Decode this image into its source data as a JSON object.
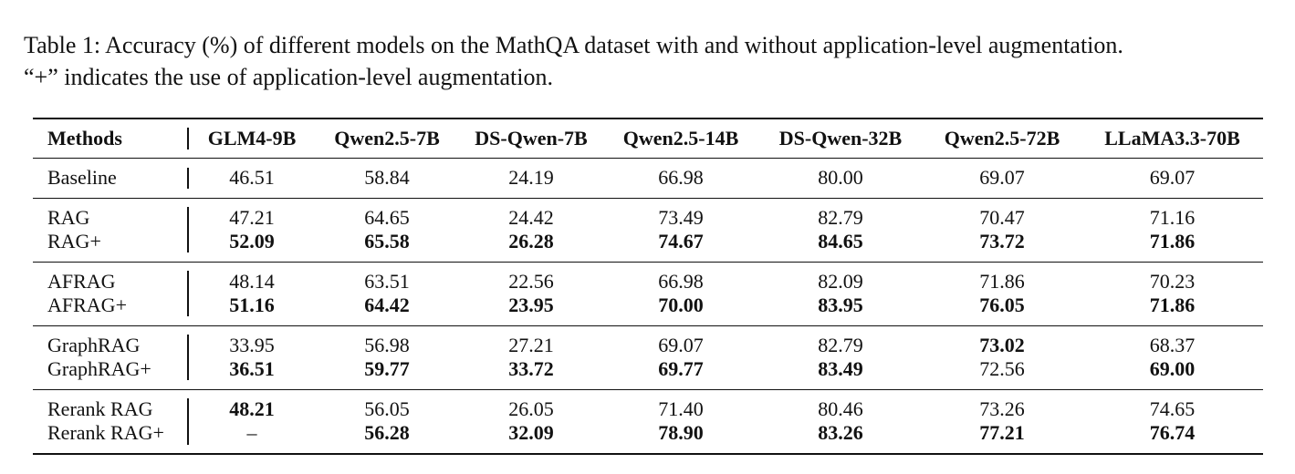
{
  "caption": {
    "line1": "Table 1: Accuracy (%) of different models on the MathQA dataset with and without application-level augmentation.",
    "line2": "“+” indicates the use of application-level augmentation."
  },
  "table": {
    "headers": [
      "Methods",
      "GLM4-9B",
      "Qwen2.5-7B",
      "DS-Qwen-7B",
      "Qwen2.5-14B",
      "DS-Qwen-32B",
      "Qwen2.5-72B",
      "LLaMA3.3-70B"
    ],
    "groups": [
      {
        "rows": [
          {
            "method": "Baseline",
            "values": [
              "46.51",
              "58.84",
              "24.19",
              "66.98",
              "80.00",
              "69.07",
              "69.07"
            ],
            "bold": [
              false,
              false,
              false,
              false,
              false,
              false,
              false
            ]
          }
        ]
      },
      {
        "rows": [
          {
            "method": "RAG",
            "values": [
              "47.21",
              "64.65",
              "24.42",
              "73.49",
              "82.79",
              "70.47",
              "71.16"
            ],
            "bold": [
              false,
              false,
              false,
              false,
              false,
              false,
              false
            ]
          },
          {
            "method": "RAG+",
            "values": [
              "52.09",
              "65.58",
              "26.28",
              "74.67",
              "84.65",
              "73.72",
              "71.86"
            ],
            "bold": [
              true,
              true,
              true,
              true,
              true,
              true,
              true
            ]
          }
        ]
      },
      {
        "rows": [
          {
            "method": "AFRAG",
            "values": [
              "48.14",
              "63.51",
              "22.56",
              "66.98",
              "82.09",
              "71.86",
              "70.23"
            ],
            "bold": [
              false,
              false,
              false,
              false,
              false,
              false,
              false
            ]
          },
          {
            "method": "AFRAG+",
            "values": [
              "51.16",
              "64.42",
              "23.95",
              "70.00",
              "83.95",
              "76.05",
              "71.86"
            ],
            "bold": [
              true,
              true,
              true,
              true,
              true,
              true,
              true
            ]
          }
        ]
      },
      {
        "rows": [
          {
            "method": "GraphRAG",
            "values": [
              "33.95",
              "56.98",
              "27.21",
              "69.07",
              "82.79",
              "73.02",
              "68.37"
            ],
            "bold": [
              false,
              false,
              false,
              false,
              false,
              true,
              false
            ]
          },
          {
            "method": "GraphRAG+",
            "values": [
              "36.51",
              "59.77",
              "33.72",
              "69.77",
              "83.49",
              "72.56",
              "69.00"
            ],
            "bold": [
              true,
              true,
              true,
              true,
              true,
              false,
              true
            ]
          }
        ]
      },
      {
        "rows": [
          {
            "method": "Rerank RAG",
            "values": [
              "48.21",
              "56.05",
              "26.05",
              "71.40",
              "80.46",
              "73.26",
              "74.65"
            ],
            "bold": [
              true,
              false,
              false,
              false,
              false,
              false,
              false
            ]
          },
          {
            "method": "Rerank RAG+",
            "values": [
              "–",
              "56.28",
              "32.09",
              "78.90",
              "83.26",
              "77.21",
              "76.74"
            ],
            "bold": [
              false,
              true,
              true,
              true,
              true,
              true,
              true
            ]
          }
        ]
      }
    ]
  }
}
